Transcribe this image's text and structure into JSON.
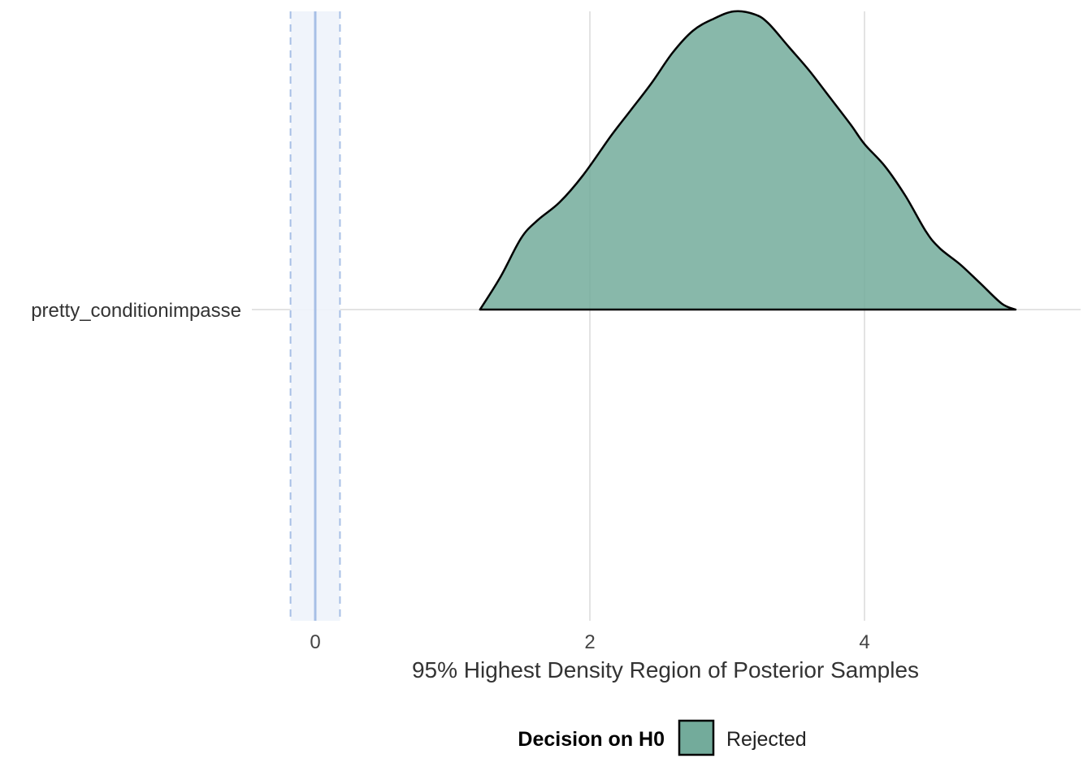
{
  "chart_data": {
    "type": "area",
    "title": "",
    "xlabel": "95% Highest Density Region of Posterior Samples",
    "ylabel": "",
    "xlim": [
      -0.25,
      5.5
    ],
    "x_ticks": [
      0,
      2,
      4
    ],
    "x_tick_labels": [
      "0",
      "2",
      "4"
    ],
    "y_categories": [
      "pretty_conditionimpasse"
    ],
    "rope": {
      "center": 0,
      "lower": -0.18,
      "upper": 0.18,
      "color": "#a7bfe6",
      "fill": "#eef3fb"
    },
    "grid": true,
    "legend": {
      "title": "Decision on H0",
      "position": "bottom",
      "entries": [
        {
          "label": "Rejected",
          "color": "#73ab9b"
        }
      ]
    },
    "series": [
      {
        "name": "Rejected",
        "category": "pretty_conditionimpasse",
        "color": "#73ab9b",
        "x": [
          1.2,
          1.35,
          1.5,
          1.62,
          1.78,
          1.95,
          2.15,
          2.3,
          2.45,
          2.6,
          2.75,
          2.9,
          3.05,
          3.2,
          3.3,
          3.45,
          3.6,
          3.75,
          3.9,
          4.0,
          4.15,
          4.3,
          4.45,
          4.55,
          4.7,
          4.85,
          5.0,
          5.1
        ],
        "density": [
          0.0,
          0.11,
          0.24,
          0.3,
          0.36,
          0.45,
          0.58,
          0.67,
          0.76,
          0.86,
          0.935,
          0.975,
          1.0,
          0.99,
          0.96,
          0.88,
          0.8,
          0.71,
          0.62,
          0.555,
          0.48,
          0.38,
          0.26,
          0.205,
          0.15,
          0.085,
          0.02,
          0.0
        ]
      }
    ]
  }
}
